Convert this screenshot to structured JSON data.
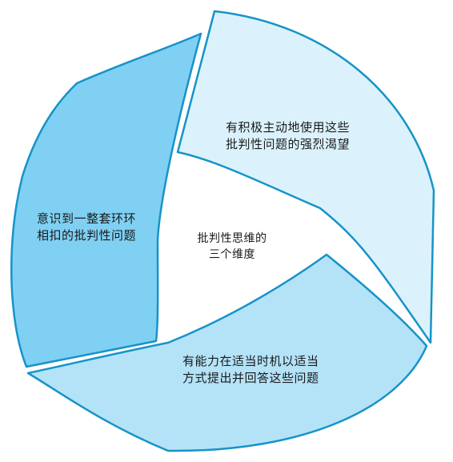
{
  "diagram": {
    "center": {
      "line1": "批判性思维的",
      "line2": "三个维度"
    },
    "segments": [
      {
        "id": "desire",
        "line1": "有积极主动地使用这些",
        "line2": "批判性问题的强烈渴望",
        "color": "#dbf2fc"
      },
      {
        "id": "ability",
        "line1": "有能力在适当时机以适当",
        "line2": "方式提出并回答这些问题",
        "color": "#b4e3f8"
      },
      {
        "id": "awareness",
        "line1": "意识到一整套环环",
        "line2": "相扣的批判性问题",
        "color": "#7fd0f3"
      }
    ],
    "stroke_color": "#1793c9"
  }
}
